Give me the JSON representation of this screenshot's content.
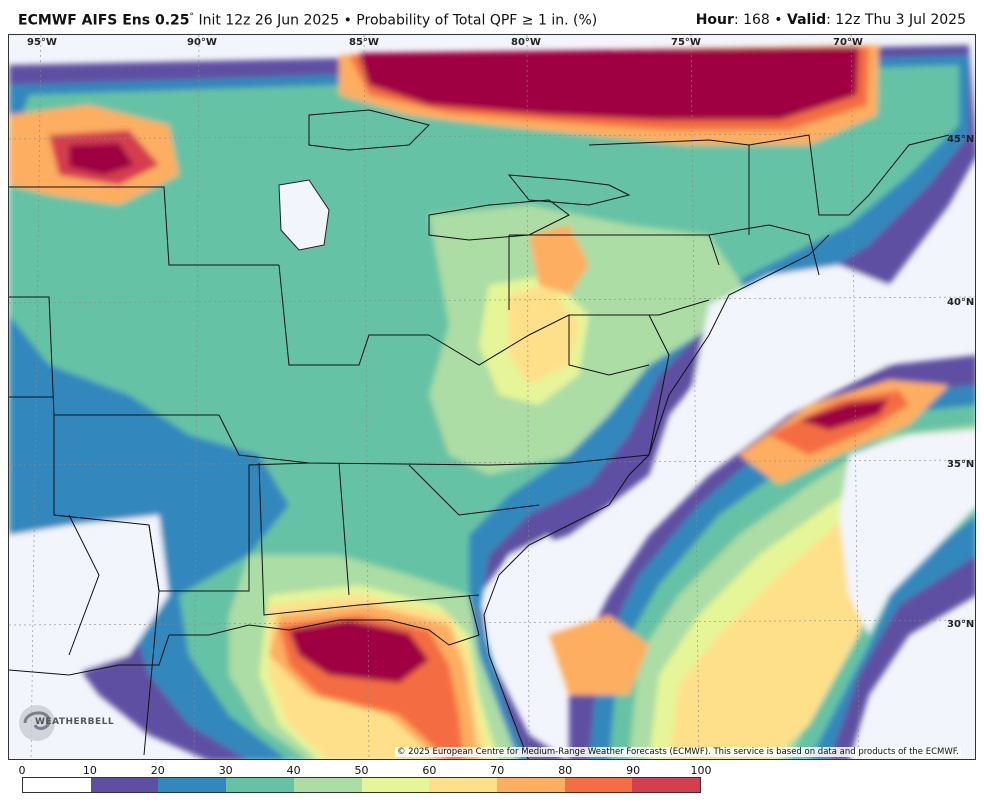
{
  "title": {
    "model": "ECMWF AIFS Ens 0.25",
    "degree": "°",
    "init": "Init 12z 26 Jun 2025",
    "separator": "•",
    "product": "Probability of Total QPF ≥ 1 in. (%)",
    "hour_label": "Hour",
    "hour_value": ": 168",
    "valid_label": "Valid",
    "valid_value": ": 12z Thu 3 Jul 2025"
  },
  "map": {
    "longitudes": [
      "95°W",
      "90°W",
      "85°W",
      "80°W",
      "75°W",
      "70°W"
    ],
    "latitudes": [
      "45°N",
      "40°N",
      "35°N",
      "30°N"
    ],
    "credit": "© 2025 European Centre for Medium-Range Weather Forecasts (ECMWF). This service is based on data and products of the ECMWF.",
    "logo_text": "WEATHERBELL"
  },
  "colorbar": {
    "ticks": [
      "0",
      "10",
      "20",
      "30",
      "40",
      "50",
      "60",
      "70",
      "80",
      "90",
      "100"
    ],
    "colors": [
      "#ffffff",
      "#5e4fa2",
      "#3288bd",
      "#66c2a5",
      "#abdda4",
      "#e6f598",
      "#fee08b",
      "#fdae61",
      "#f46d43",
      "#d53e4f",
      "#9e0142"
    ]
  }
}
